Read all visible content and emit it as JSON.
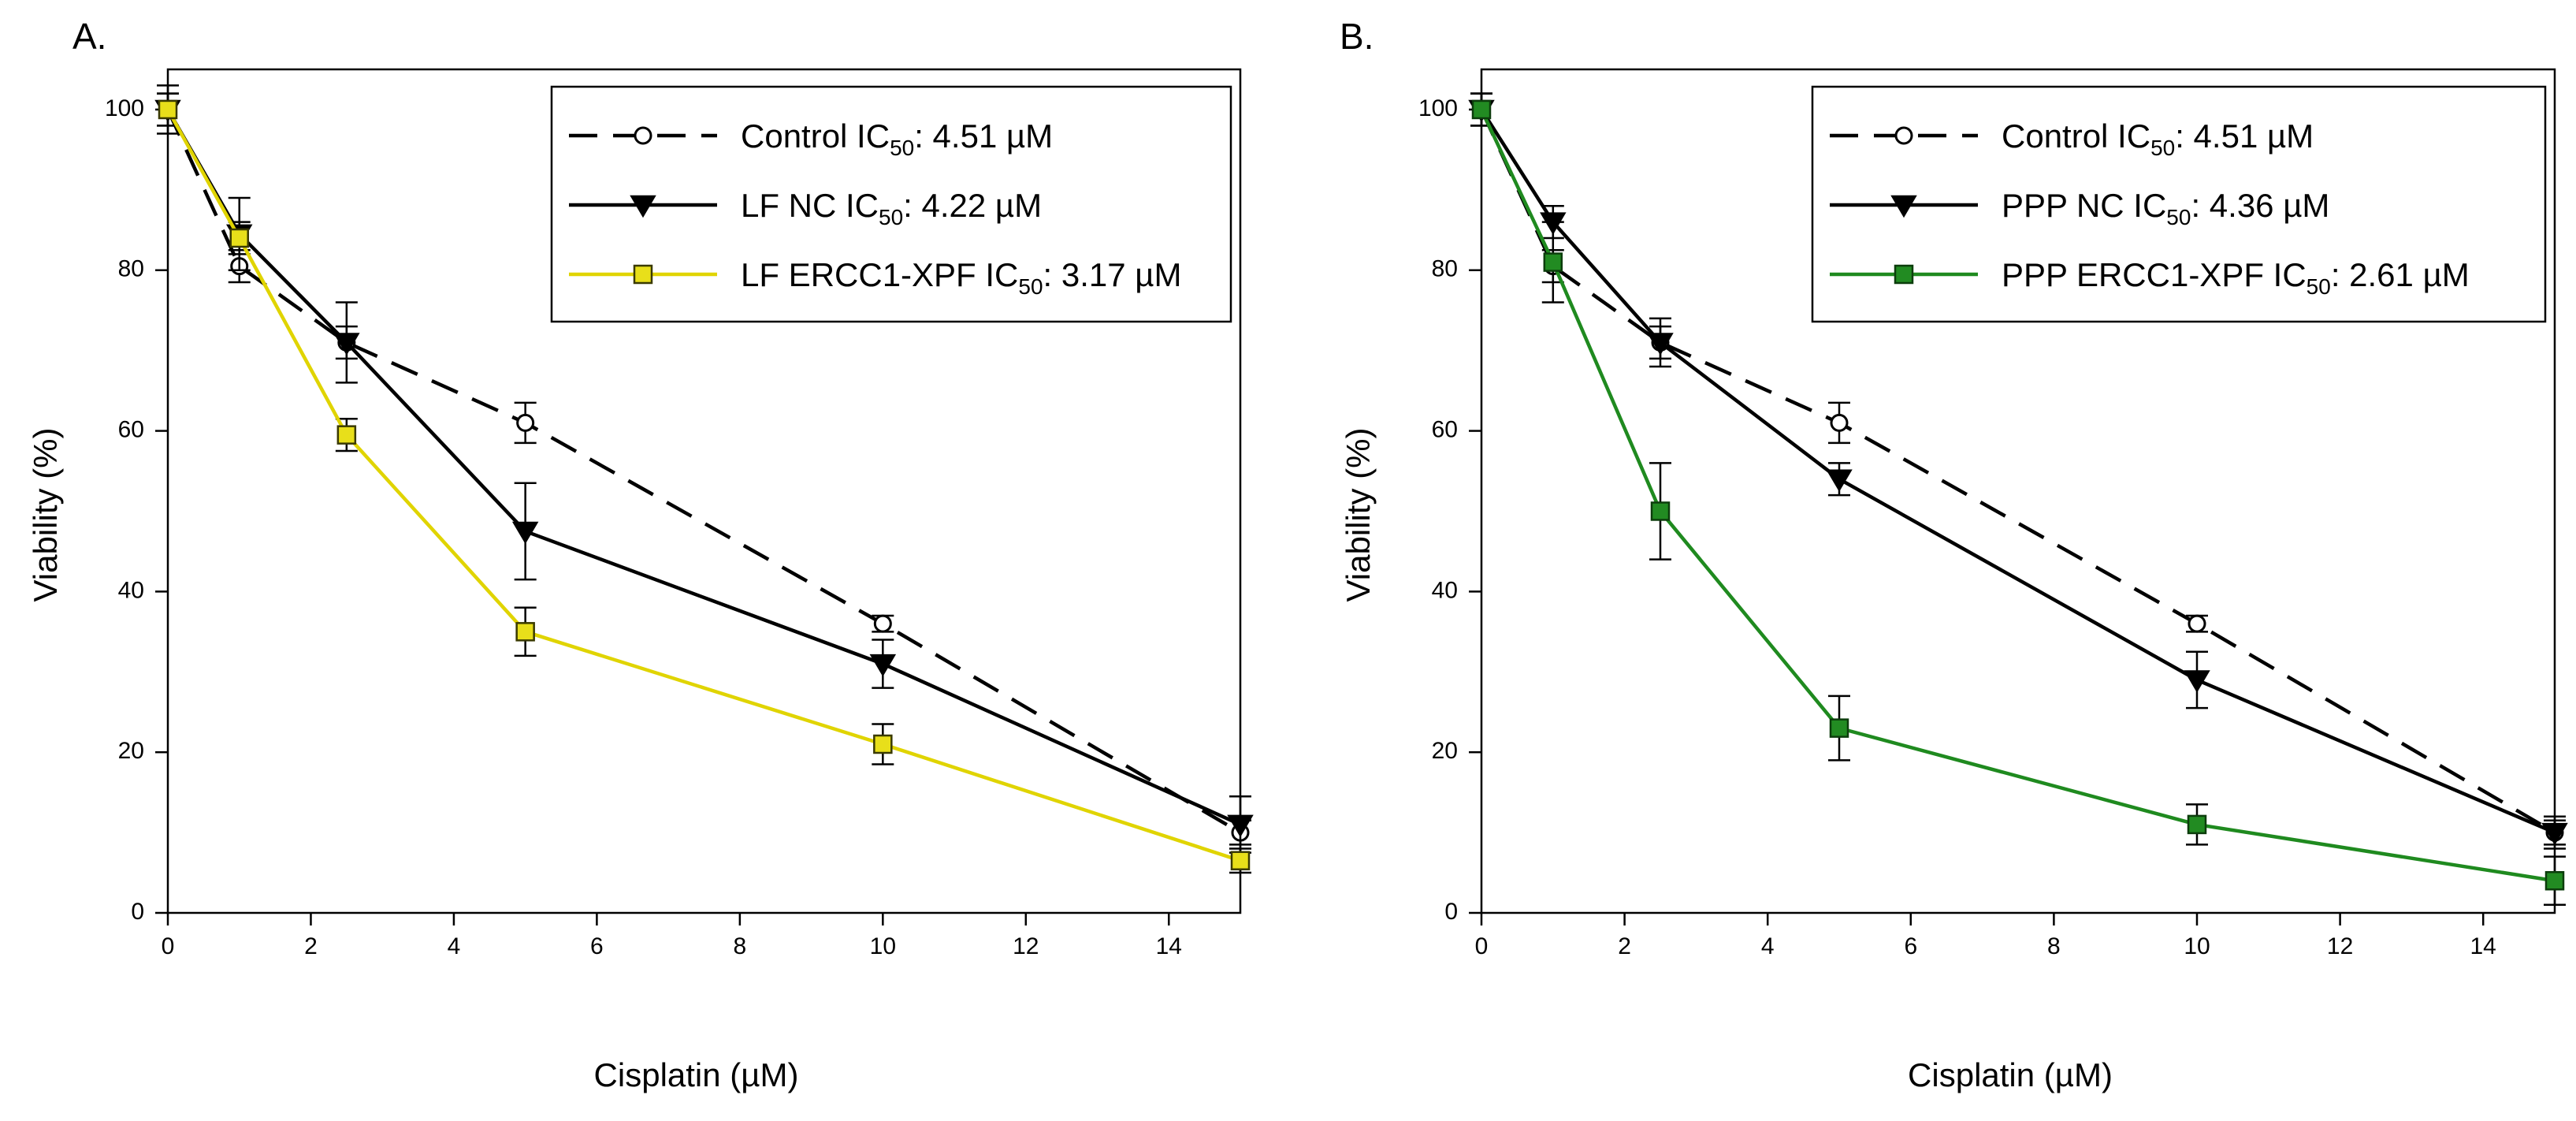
{
  "chart_data": [
    {
      "type": "line",
      "panel_label": "A.",
      "xlabel": "Cisplatin (µM)",
      "ylabel": "Viability (%)",
      "xlim": [
        0,
        15
      ],
      "ylim": [
        0,
        105
      ],
      "xticks": [
        0,
        2,
        4,
        6,
        8,
        10,
        12,
        14
      ],
      "yticks": [
        0,
        20,
        40,
        60,
        80,
        100
      ],
      "legend_position": "top-right",
      "series": [
        {
          "name": "Control",
          "legend_prefix": "Control IC",
          "legend_sub": "50",
          "legend_suffix": ": 4.51 µM",
          "color": "#000000",
          "line_style": "dashed",
          "marker": "circle-open",
          "marker_fill": "#ffffff",
          "x": [
            0,
            1,
            2.5,
            5,
            10,
            15
          ],
          "y": [
            100,
            80.5,
            71,
            61,
            36,
            10
          ],
          "err": [
            2,
            2,
            2,
            2.5,
            1,
            1.5
          ]
        },
        {
          "name": "LF NC",
          "legend_prefix": "LF NC IC",
          "legend_sub": "50",
          "legend_suffix": ": 4.22 µM",
          "color": "#000000",
          "line_style": "solid",
          "marker": "triangle-down",
          "marker_fill": "#000000",
          "x": [
            0,
            1,
            2.5,
            5,
            10,
            15
          ],
          "y": [
            100,
            84.5,
            71,
            47.5,
            31,
            11
          ],
          "err": [
            3,
            4.5,
            5,
            6,
            3,
            3.5
          ]
        },
        {
          "name": "LF ERCC1-XPF",
          "legend_prefix": "LF ERCC1-XPF IC",
          "legend_sub": "50",
          "legend_suffix": ": 3.17 µM",
          "color": "#e0d400",
          "line_style": "solid",
          "marker": "square",
          "marker_fill": "#e8df1a",
          "x": [
            0,
            1,
            2.5,
            5,
            10,
            15
          ],
          "y": [
            100,
            84,
            59.5,
            35,
            21,
            6.5
          ],
          "err": [
            2,
            2,
            2,
            3,
            2.5,
            1.5
          ]
        }
      ]
    },
    {
      "type": "line",
      "panel_label": "B.",
      "xlabel": "Cisplatin (µM)",
      "ylabel": "Viability (%)",
      "xlim": [
        0,
        15
      ],
      "ylim": [
        0,
        105
      ],
      "xticks": [
        0,
        2,
        4,
        6,
        8,
        10,
        12,
        14
      ],
      "yticks": [
        0,
        20,
        40,
        60,
        80,
        100
      ],
      "legend_position": "top-right",
      "series": [
        {
          "name": "Control",
          "legend_prefix": "Control IC",
          "legend_sub": "50",
          "legend_suffix": ": 4.51 µM",
          "color": "#000000",
          "line_style": "dashed",
          "marker": "circle-open",
          "marker_fill": "#ffffff",
          "x": [
            0,
            1,
            2.5,
            5,
            10,
            15
          ],
          "y": [
            100,
            80.5,
            71,
            61,
            36,
            10
          ],
          "err": [
            2,
            2,
            2,
            2.5,
            1,
            1.5
          ]
        },
        {
          "name": "PPP NC",
          "legend_prefix": "PPP NC IC",
          "legend_sub": "50",
          "legend_suffix": ": 4.36 µM",
          "color": "#000000",
          "line_style": "solid",
          "marker": "triangle-down",
          "marker_fill": "#000000",
          "x": [
            0,
            1,
            2.5,
            5,
            10,
            15
          ],
          "y": [
            100,
            86,
            71,
            54,
            29,
            10
          ],
          "err": [
            2,
            2,
            3,
            2,
            3.5,
            2
          ]
        },
        {
          "name": "PPP ERCC1-XPF",
          "legend_prefix": "PPP ERCC1-XPF IC",
          "legend_sub": "50",
          "legend_suffix": ": 2.61 µM",
          "color": "#1f8a1f",
          "line_style": "solid",
          "marker": "square",
          "marker_fill": "#228b22",
          "x": [
            0,
            1,
            2.5,
            5,
            10,
            15
          ],
          "y": [
            100,
            81,
            50,
            23,
            11,
            4
          ],
          "err": [
            2,
            5,
            6,
            4,
            2.5,
            3
          ]
        }
      ]
    }
  ]
}
